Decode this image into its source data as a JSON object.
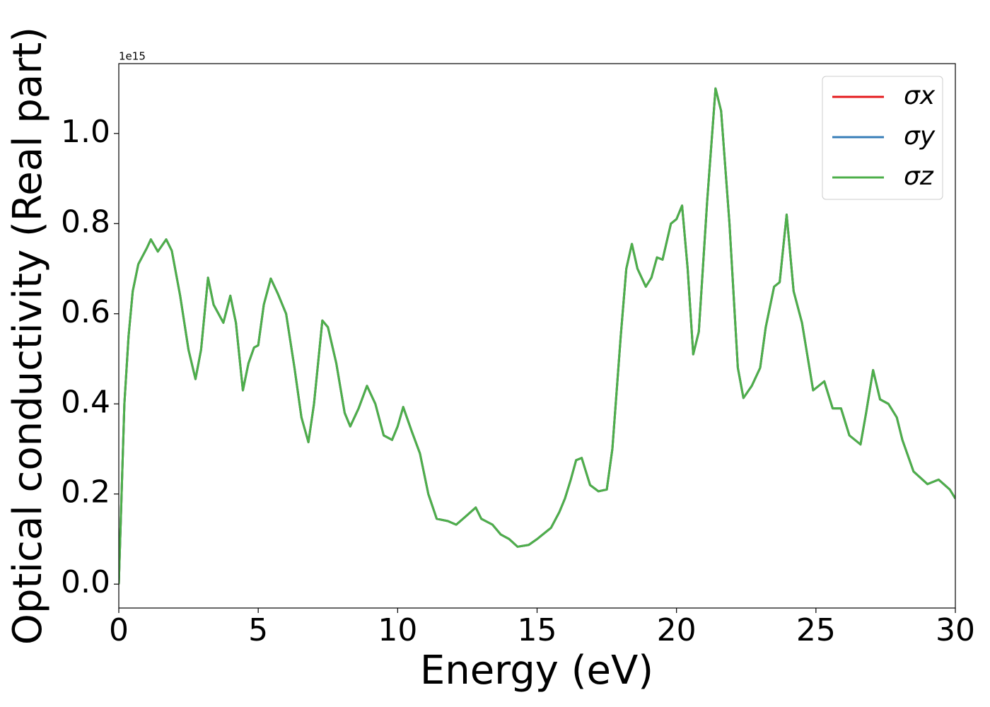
{
  "chart_data": {
    "type": "line",
    "xlabel": "Energy (eV)",
    "ylabel": "Optical conductivity (Real part)",
    "y_offset_label": "1e15",
    "x": [
      0,
      0.1,
      0.2,
      0.35,
      0.5,
      0.7,
      1.0,
      1.15,
      1.4,
      1.7,
      1.9,
      2.2,
      2.5,
      2.75,
      2.95,
      3.2,
      3.4,
      3.75,
      4.0,
      4.2,
      4.45,
      4.65,
      4.85,
      5.0,
      5.2,
      5.45,
      5.7,
      6.0,
      6.3,
      6.55,
      6.8,
      7.0,
      7.3,
      7.5,
      7.8,
      8.1,
      8.3,
      8.6,
      8.9,
      9.2,
      9.5,
      9.8,
      10.0,
      10.2,
      10.5,
      10.8,
      11.1,
      11.4,
      11.8,
      12.1,
      12.4,
      12.8,
      13.0,
      13.4,
      13.7,
      14.0,
      14.3,
      14.7,
      15.0,
      15.5,
      15.8,
      16.0,
      16.2,
      16.4,
      16.6,
      16.9,
      17.2,
      17.5,
      17.7,
      18.0,
      18.2,
      18.4,
      18.6,
      18.9,
      19.1,
      19.3,
      19.5,
      19.8,
      20.0,
      20.2,
      20.4,
      20.6,
      20.8,
      21.1,
      21.4,
      21.6,
      21.9,
      22.2,
      22.4,
      22.7,
      23.0,
      23.2,
      23.5,
      23.7,
      23.95,
      24.2,
      24.5,
      24.9,
      25.3,
      25.6,
      25.9,
      26.2,
      26.6,
      26.8,
      27.05,
      27.3,
      27.6,
      27.9,
      28.1,
      28.5,
      29.0,
      29.4,
      29.8,
      30.0
    ],
    "series": [
      {
        "name": "σx",
        "color": "#e41a1c",
        "values": [
          0,
          0.2,
          0.4,
          0.55,
          0.65,
          0.71,
          0.745,
          0.765,
          0.738,
          0.765,
          0.74,
          0.64,
          0.52,
          0.455,
          0.52,
          0.68,
          0.62,
          0.58,
          0.64,
          0.58,
          0.43,
          0.49,
          0.525,
          0.53,
          0.62,
          0.678,
          0.645,
          0.6,
          0.48,
          0.37,
          0.315,
          0.4,
          0.585,
          0.57,
          0.49,
          0.38,
          0.35,
          0.39,
          0.44,
          0.4,
          0.33,
          0.32,
          0.35,
          0.393,
          0.34,
          0.29,
          0.2,
          0.145,
          0.14,
          0.132,
          0.148,
          0.17,
          0.145,
          0.132,
          0.11,
          0.1,
          0.083,
          0.087,
          0.1,
          0.125,
          0.16,
          0.19,
          0.23,
          0.275,
          0.28,
          0.22,
          0.206,
          0.21,
          0.3,
          0.55,
          0.7,
          0.755,
          0.7,
          0.66,
          0.68,
          0.725,
          0.72,
          0.8,
          0.81,
          0.84,
          0.7,
          0.51,
          0.56,
          0.85,
          1.1,
          1.05,
          0.8,
          0.48,
          0.413,
          0.44,
          0.48,
          0.57,
          0.66,
          0.67,
          0.82,
          0.65,
          0.58,
          0.43,
          0.45,
          0.39,
          0.39,
          0.33,
          0.31,
          0.38,
          0.475,
          0.41,
          0.4,
          0.37,
          0.32,
          0.25,
          0.222,
          0.232,
          0.21,
          0.19
        ]
      },
      {
        "name": "σy",
        "color": "#377eb8",
        "values": [
          0,
          0.2,
          0.4,
          0.55,
          0.65,
          0.71,
          0.745,
          0.765,
          0.738,
          0.765,
          0.74,
          0.64,
          0.52,
          0.455,
          0.52,
          0.68,
          0.62,
          0.58,
          0.64,
          0.58,
          0.43,
          0.49,
          0.525,
          0.53,
          0.62,
          0.678,
          0.645,
          0.6,
          0.48,
          0.37,
          0.315,
          0.4,
          0.585,
          0.57,
          0.49,
          0.38,
          0.35,
          0.39,
          0.44,
          0.4,
          0.33,
          0.32,
          0.35,
          0.393,
          0.34,
          0.29,
          0.2,
          0.145,
          0.14,
          0.132,
          0.148,
          0.17,
          0.145,
          0.132,
          0.11,
          0.1,
          0.083,
          0.087,
          0.1,
          0.125,
          0.16,
          0.19,
          0.23,
          0.275,
          0.28,
          0.22,
          0.206,
          0.21,
          0.3,
          0.55,
          0.7,
          0.755,
          0.7,
          0.66,
          0.68,
          0.725,
          0.72,
          0.8,
          0.81,
          0.84,
          0.7,
          0.51,
          0.56,
          0.85,
          1.1,
          1.05,
          0.8,
          0.48,
          0.413,
          0.44,
          0.48,
          0.57,
          0.66,
          0.67,
          0.82,
          0.65,
          0.58,
          0.43,
          0.45,
          0.39,
          0.39,
          0.33,
          0.31,
          0.38,
          0.475,
          0.41,
          0.4,
          0.37,
          0.32,
          0.25,
          0.222,
          0.232,
          0.21,
          0.19
        ]
      },
      {
        "name": "σz",
        "color": "#4daf4a",
        "values": [
          0,
          0.2,
          0.4,
          0.55,
          0.65,
          0.71,
          0.745,
          0.765,
          0.738,
          0.765,
          0.74,
          0.64,
          0.52,
          0.455,
          0.52,
          0.68,
          0.62,
          0.58,
          0.64,
          0.58,
          0.43,
          0.49,
          0.525,
          0.53,
          0.62,
          0.678,
          0.645,
          0.6,
          0.48,
          0.37,
          0.315,
          0.4,
          0.585,
          0.57,
          0.49,
          0.38,
          0.35,
          0.39,
          0.44,
          0.4,
          0.33,
          0.32,
          0.35,
          0.393,
          0.34,
          0.29,
          0.2,
          0.145,
          0.14,
          0.132,
          0.148,
          0.17,
          0.145,
          0.132,
          0.11,
          0.1,
          0.083,
          0.087,
          0.1,
          0.125,
          0.16,
          0.19,
          0.23,
          0.275,
          0.28,
          0.22,
          0.206,
          0.21,
          0.3,
          0.55,
          0.7,
          0.755,
          0.7,
          0.66,
          0.68,
          0.725,
          0.72,
          0.8,
          0.81,
          0.84,
          0.7,
          0.51,
          0.56,
          0.85,
          1.1,
          1.05,
          0.8,
          0.48,
          0.413,
          0.44,
          0.48,
          0.57,
          0.66,
          0.67,
          0.82,
          0.65,
          0.58,
          0.43,
          0.45,
          0.39,
          0.39,
          0.33,
          0.31,
          0.38,
          0.475,
          0.41,
          0.4,
          0.37,
          0.32,
          0.25,
          0.222,
          0.232,
          0.21,
          0.19
        ]
      }
    ],
    "xlim": [
      0,
      30
    ],
    "xticks": [
      0,
      5,
      10,
      15,
      20,
      25,
      30
    ],
    "ylim": [
      -0.053,
      1.155
    ],
    "yticks": [
      {
        "value": 0,
        "label": "0.0"
      },
      0.2,
      0.4,
      0.6,
      0.8,
      {
        "value": 1,
        "label": "1.0"
      }
    ],
    "grid": false,
    "legend": "upper right"
  }
}
